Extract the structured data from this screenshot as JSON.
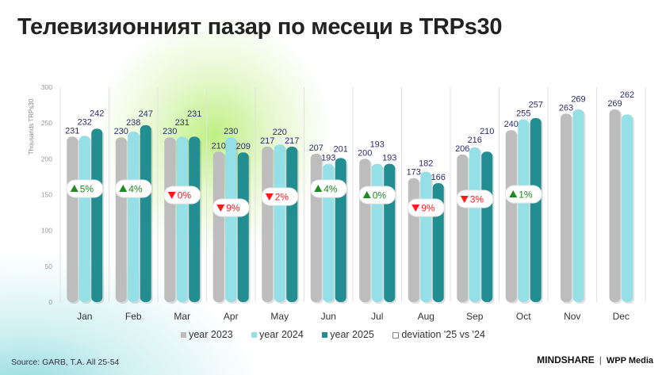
{
  "title": "Телевизионният пазар по месеци в TRPs30",
  "chart_data": {
    "type": "bar",
    "title": "Телевизионният пазар по месеци в TRPs30",
    "ylabel": "Thousands TRPs30",
    "xlabel": "",
    "ylim": [
      0,
      300
    ],
    "yticks": [
      0,
      50,
      100,
      150,
      200,
      250,
      300
    ],
    "grid": "vertical separators",
    "legend_position": "bottom",
    "categories": [
      "Jan",
      "Feb",
      "Mar",
      "Apr",
      "May",
      "Jun",
      "Jul",
      "Aug",
      "Sep",
      "Oct",
      "Nov",
      "Dec"
    ],
    "series": [
      {
        "name": "year 2023",
        "color": "#bdbdbd",
        "values": [
          231,
          230,
          230,
          210,
          217,
          207,
          200,
          173,
          206,
          240,
          263,
          269
        ]
      },
      {
        "name": "year 2024",
        "color": "#95e0e6",
        "values": [
          232,
          238,
          231,
          230,
          220,
          193,
          193,
          182,
          216,
          255,
          269,
          262
        ]
      },
      {
        "name": "year 2025",
        "color": "#238e92",
        "values": [
          242,
          247,
          231,
          209,
          217,
          201,
          193,
          166,
          210,
          257,
          null,
          null
        ]
      }
    ],
    "deviation": {
      "name": "deviation '25 vs '24",
      "labels": [
        "5%",
        "4%",
        "0%",
        "9%",
        "2%",
        "4%",
        "0%",
        "9%",
        "3%",
        "1%",
        null,
        null
      ],
      "direction": [
        "up",
        "up",
        "down",
        "down",
        "down",
        "up",
        "up",
        "down",
        "down",
        "up",
        null,
        null
      ],
      "up_color": "#1f8a1f",
      "down_color": "#ff1a1a"
    },
    "label_color": "#2b2d6e"
  },
  "footer": {
    "source": "Source: GARB, T.A. All 25-54",
    "brand1": "MINDSHARE",
    "separator": "|",
    "brand2": "WPP Media"
  }
}
